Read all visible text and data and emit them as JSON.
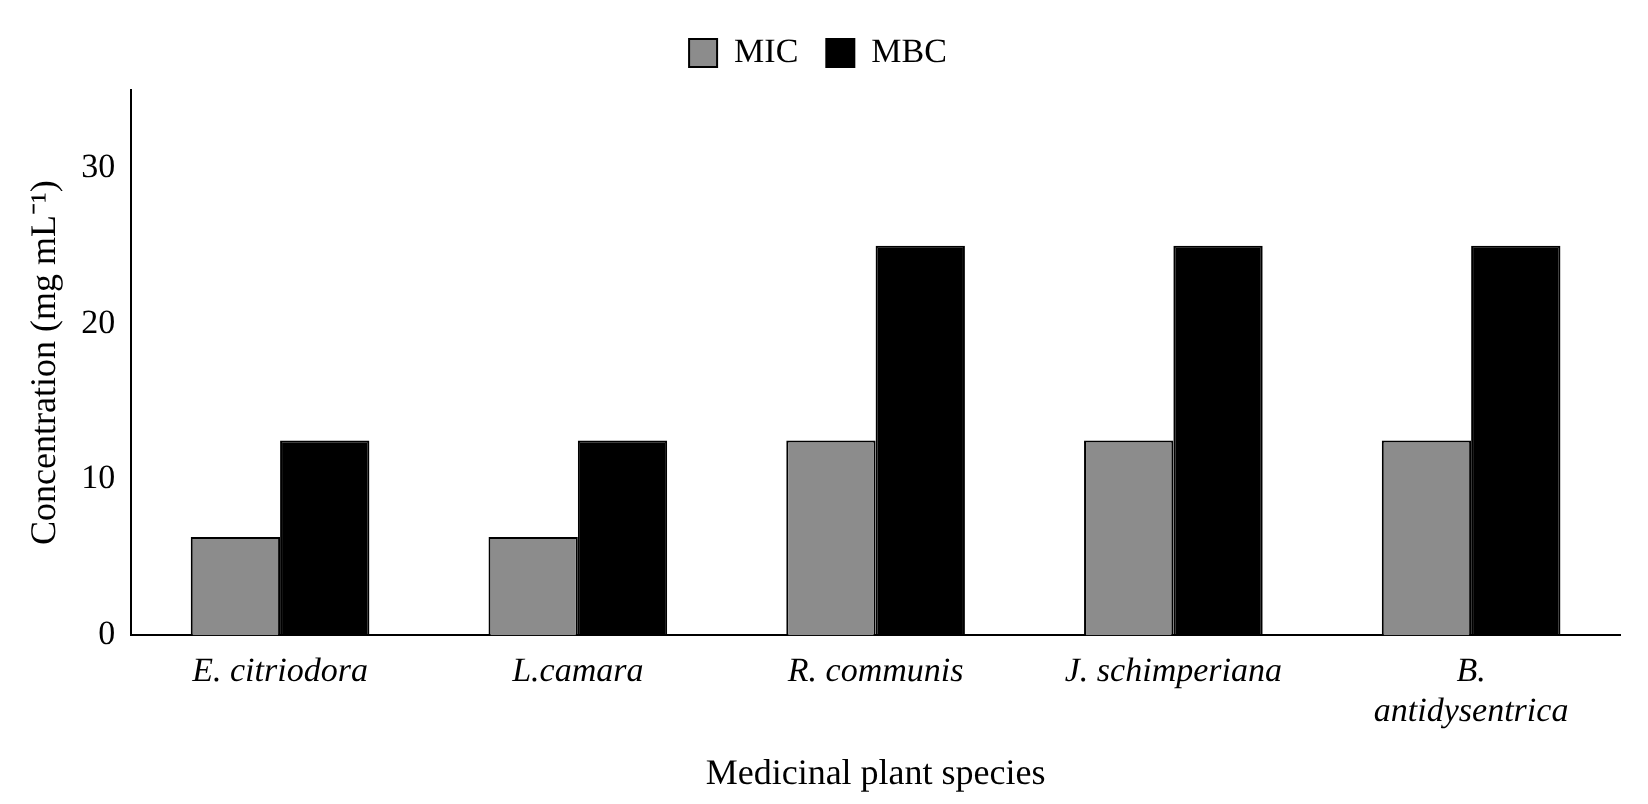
{
  "chart_data": {
    "type": "bar",
    "xlabel": "Medicinal plant species",
    "ylabel": "Concentration (mg mL⁻¹)",
    "categories": [
      "E. citriodora",
      "L.camara",
      "R. communis",
      "J. schimperiana",
      "B. antidysentrica"
    ],
    "series": [
      {
        "name": "MIC",
        "color": "#8c8c8c",
        "values": [
          6.3,
          6.3,
          12.5,
          12.5,
          12.5
        ]
      },
      {
        "name": "MBC",
        "color": "#000000",
        "values": [
          12.5,
          12.5,
          25,
          25,
          25
        ]
      }
    ],
    "ylim": [
      0,
      35
    ],
    "yticks": [
      0,
      10,
      20,
      30
    ],
    "grid": false,
    "legend": "top"
  }
}
